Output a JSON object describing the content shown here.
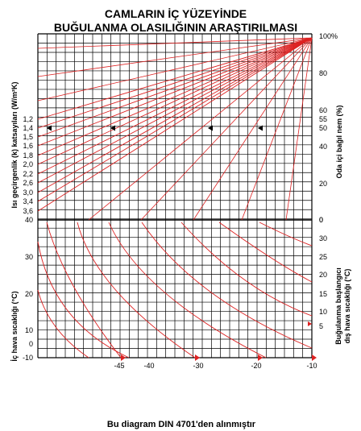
{
  "chart_data": {
    "type": "line",
    "title_lines": [
      "CAMLARIN İÇ YÜZEYİNDE",
      "BUĞULANMA OLASILIĞININ ARAŞTIRILMASI"
    ],
    "footer": "Bu diagram DIN 4701'den alınmıştır",
    "upper_panel": {
      "left_axis_label": "Isı geçirgenlik (k) katsayıları (W/m²K)",
      "right_axis_label": "Oda içi bağıl nem (%)",
      "k_values": [
        "1,2",
        "1,4",
        "1,5",
        "1,6",
        "1,8",
        "2,0",
        "2,2",
        "2,6",
        "3,0",
        "3,4",
        "3,6"
      ],
      "humidity_ticks": [
        "100%",
        "80",
        "60",
        "55",
        "50",
        "40",
        "20",
        "0"
      ]
    },
    "lower_panel": {
      "left_axis_label": "İç hava sıcaklığı (°C)",
      "right_axis_label_lines": [
        "Buğulanma başlangıcı",
        "dış hava sıcaklığı (°C)"
      ],
      "left_ticks": [
        "40",
        "30",
        "20",
        "10",
        "0",
        "-10"
      ],
      "right_ticks": [
        "0",
        "5",
        "10",
        "15",
        "20",
        "25",
        "30"
      ],
      "bottom_ticks": [
        "-45",
        "-40",
        "-30",
        "-20",
        "-10"
      ]
    },
    "colors": {
      "curve": "#dd2222",
      "grid": "#000000",
      "background": "#ffffff"
    }
  }
}
